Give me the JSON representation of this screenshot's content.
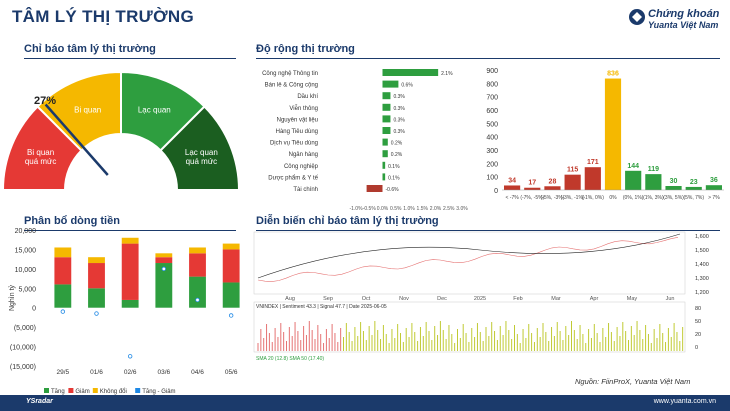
{
  "header": {
    "title": "TÂM LÝ THỊ TRƯỜNG",
    "brand_line1": "Chứng khoán",
    "brand_line2": "Yuanta Việt Nam"
  },
  "gauge": {
    "section_title": "Chỉ báo tâm lý thị trường",
    "value_label": "27%",
    "segments": [
      {
        "label": "Bi quan\nquá mức",
        "color": "#e53935"
      },
      {
        "label": "Bi quan",
        "color": "#f5b800"
      },
      {
        "label": "Lạc quan",
        "color": "#2e9e3f"
      },
      {
        "label": "Lạc quan\nquá mức",
        "color": "#1b5e20"
      }
    ],
    "needle_value": 27
  },
  "breadth": {
    "section_title": "Độ rộng thị trường",
    "sectors": [
      {
        "name": "Công nghệ Thông tin",
        "value": 2.1,
        "label": "2.1%"
      },
      {
        "name": "Bán lẻ & Công cộng",
        "value": 0.6,
        "label": "0.6%"
      },
      {
        "name": "Dầu khí",
        "value": 0.3,
        "label": "0.3%"
      },
      {
        "name": "Viễn thông",
        "value": 0.3,
        "label": "0.3%"
      },
      {
        "name": "Nguyên vật liệu",
        "value": 0.3,
        "label": "0.3%"
      },
      {
        "name": "Hàng Tiêu dùng",
        "value": 0.3,
        "label": "0.3%"
      },
      {
        "name": "Dịch vụ Tiêu dùng",
        "value": 0.2,
        "label": "0.2%"
      },
      {
        "name": "Ngân hàng",
        "value": 0.2,
        "label": "0.2%"
      },
      {
        "name": "Công nghiệp",
        "value": 0.1,
        "label": "0.1%"
      },
      {
        "name": "Dược phẩm & Y tế",
        "value": 0.1,
        "label": "0.1%"
      },
      {
        "name": "Tài chính",
        "value": -0.6,
        "label": "-0.6%"
      }
    ],
    "sector_axis_ticks": [
      "-1.0%",
      "-0.5%",
      "0.0%",
      "0.5%",
      "1.0%",
      "1.5%",
      "2.0%",
      "2.5%",
      "3.0%"
    ],
    "dist_y_ticks": [
      "0",
      "100",
      "200",
      "300",
      "400",
      "500",
      "600",
      "700",
      "800",
      "900"
    ],
    "dist_bars": [
      {
        "value": 34,
        "color": "#c0392b",
        "label": "< -7%"
      },
      {
        "value": 17,
        "color": "#c0392b",
        "label": "(-7%, -5%)"
      },
      {
        "value": 28,
        "color": "#c0392b",
        "label": "(-5%, -3%)"
      },
      {
        "value": 115,
        "color": "#c0392b",
        "label": "(-3%, -1%)"
      },
      {
        "value": 171,
        "color": "#c0392b",
        "label": "(-1%, 0%)"
      },
      {
        "value": 836,
        "color": "#f5b800",
        "label": "0%"
      },
      {
        "value": 144,
        "color": "#2e9e3f",
        "label": "(0%, 1%)"
      },
      {
        "value": 119,
        "color": "#2e9e3f",
        "label": "(1%, 3%)"
      },
      {
        "value": 30,
        "color": "#2e9e3f",
        "label": "(3%, 5%)"
      },
      {
        "value": 23,
        "color": "#2e9e3f",
        "label": "(5%, 7%)"
      },
      {
        "value": 36,
        "color": "#2e9e3f",
        "label": "> 7%"
      }
    ]
  },
  "flow": {
    "section_title": "Phân bổ dòng tiền",
    "y_ticks": [
      "20,000",
      "15,000",
      "10,000",
      "5,000",
      "0",
      "(5,000)",
      "(10,000)",
      "(15,000)"
    ],
    "y_label": "Nghìn tỷ",
    "dates": [
      "29/5",
      "01/6",
      "02/6",
      "03/6",
      "04/6",
      "05/6"
    ],
    "legend": [
      "Tăng",
      "Giảm",
      "Không đổi",
      "Tăng - Giảm"
    ]
  },
  "sentiment": {
    "section_title": "Diễn biến chỉ báo tâm lý thị trường",
    "months": [
      "Aug",
      "Sep",
      "Oct",
      "Nov",
      "Dec",
      "2025",
      "Feb",
      "Mar",
      "Apr",
      "May",
      "Jun"
    ],
    "price_ticks": [
      "1,600",
      "1,500",
      "1,400",
      "1,300",
      "1,200"
    ],
    "ind_ticks": [
      "80",
      "50",
      "20",
      "0"
    ],
    "info_line": "VNINDEX | Sentiment 43.3 | Signal 47.7 | Date 2025-06-05",
    "sub_caption": "SMA 20 (12.8)  SMA 50 (17.40)"
  },
  "source": "Nguồn: FiinProX, Yuanta Việt Nam",
  "footer": {
    "left": "YSradar",
    "right": "www.yuanta.com.vn"
  }
}
